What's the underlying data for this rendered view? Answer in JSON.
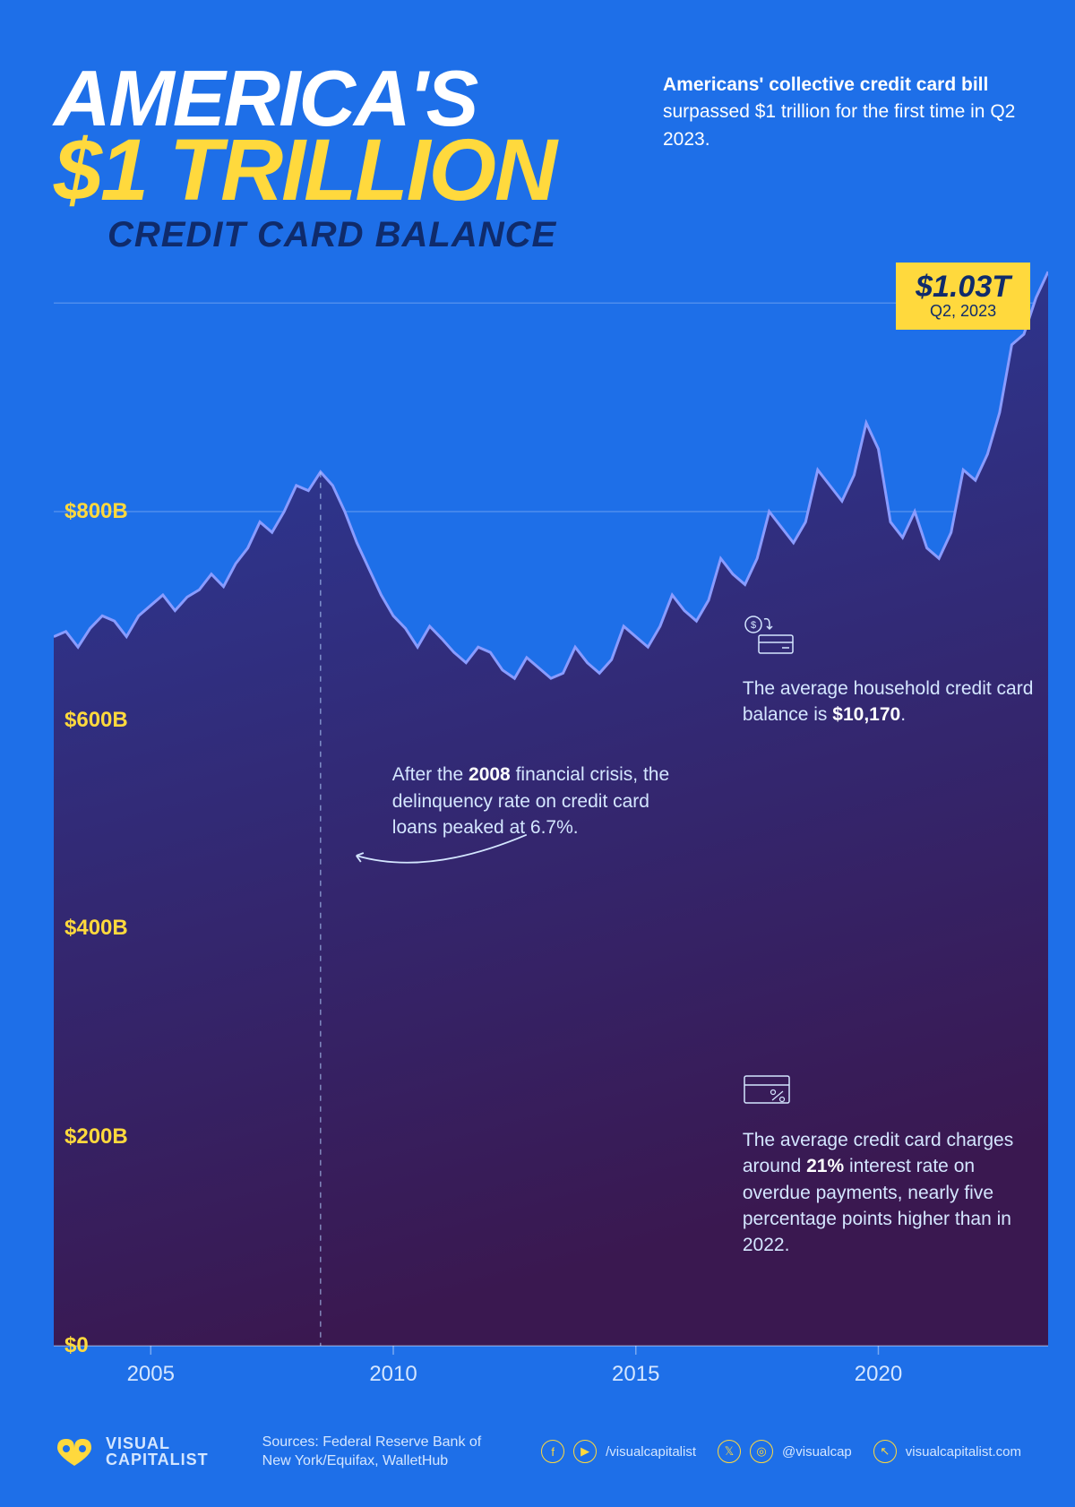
{
  "title": {
    "line1": "AMERICA'S",
    "line2": "$1 TRILLION",
    "line3": "CREDIT CARD BALANCE"
  },
  "subtitle": {
    "bold": "Americans' collective credit card bill",
    "rest": " surpassed $1 trillion for the first time in Q2 2023."
  },
  "colors": {
    "bg": "#1e6fe8",
    "accent": "#ffd93d",
    "dark": "#0f2b6b",
    "area_top": "#2a3d9e",
    "area_bottom": "#3a1850",
    "line_stroke": "#8a9cff",
    "text_light": "#d4e6ff",
    "white": "#ffffff"
  },
  "chart": {
    "type": "area",
    "x_start_year": 2003,
    "x_end_year": 2023.5,
    "ylim": [
      0,
      1050
    ],
    "ytick_values": [
      0,
      200,
      400,
      600,
      800
    ],
    "ytick_labels": [
      "$0",
      "$200B",
      "$400B",
      "$600B",
      "$800B"
    ],
    "xtick_values": [
      2005,
      2010,
      2015,
      2020
    ],
    "xtick_labels": [
      "2005",
      "2010",
      "2015",
      "2020"
    ],
    "vertical_marker_year": 2008.5,
    "data": [
      [
        2003.0,
        680
      ],
      [
        2003.25,
        685
      ],
      [
        2003.5,
        670
      ],
      [
        2003.75,
        688
      ],
      [
        2004.0,
        700
      ],
      [
        2004.25,
        695
      ],
      [
        2004.5,
        680
      ],
      [
        2004.75,
        700
      ],
      [
        2005.0,
        710
      ],
      [
        2005.25,
        720
      ],
      [
        2005.5,
        705
      ],
      [
        2005.75,
        718
      ],
      [
        2006.0,
        725
      ],
      [
        2006.25,
        740
      ],
      [
        2006.5,
        728
      ],
      [
        2006.75,
        750
      ],
      [
        2007.0,
        765
      ],
      [
        2007.25,
        790
      ],
      [
        2007.5,
        780
      ],
      [
        2007.75,
        800
      ],
      [
        2008.0,
        825
      ],
      [
        2008.25,
        820
      ],
      [
        2008.5,
        838
      ],
      [
        2008.75,
        825
      ],
      [
        2009.0,
        800
      ],
      [
        2009.25,
        770
      ],
      [
        2009.5,
        745
      ],
      [
        2009.75,
        720
      ],
      [
        2010.0,
        700
      ],
      [
        2010.25,
        688
      ],
      [
        2010.5,
        670
      ],
      [
        2010.75,
        690
      ],
      [
        2011.0,
        678
      ],
      [
        2011.25,
        665
      ],
      [
        2011.5,
        655
      ],
      [
        2011.75,
        670
      ],
      [
        2012.0,
        665
      ],
      [
        2012.25,
        648
      ],
      [
        2012.5,
        640
      ],
      [
        2012.75,
        660
      ],
      [
        2013.0,
        650
      ],
      [
        2013.25,
        640
      ],
      [
        2013.5,
        645
      ],
      [
        2013.75,
        670
      ],
      [
        2014.0,
        655
      ],
      [
        2014.25,
        645
      ],
      [
        2014.5,
        658
      ],
      [
        2014.75,
        690
      ],
      [
        2015.0,
        680
      ],
      [
        2015.25,
        670
      ],
      [
        2015.5,
        690
      ],
      [
        2015.75,
        720
      ],
      [
        2016.0,
        705
      ],
      [
        2016.25,
        695
      ],
      [
        2016.5,
        715
      ],
      [
        2016.75,
        755
      ],
      [
        2017.0,
        740
      ],
      [
        2017.25,
        730
      ],
      [
        2017.5,
        755
      ],
      [
        2017.75,
        800
      ],
      [
        2018.0,
        785
      ],
      [
        2018.25,
        770
      ],
      [
        2018.5,
        790
      ],
      [
        2018.75,
        840
      ],
      [
        2019.0,
        825
      ],
      [
        2019.25,
        810
      ],
      [
        2019.5,
        835
      ],
      [
        2019.75,
        885
      ],
      [
        2020.0,
        860
      ],
      [
        2020.25,
        790
      ],
      [
        2020.5,
        775
      ],
      [
        2020.75,
        800
      ],
      [
        2021.0,
        765
      ],
      [
        2021.25,
        755
      ],
      [
        2021.5,
        780
      ],
      [
        2021.75,
        840
      ],
      [
        2022.0,
        830
      ],
      [
        2022.25,
        855
      ],
      [
        2022.5,
        895
      ],
      [
        2022.75,
        960
      ],
      [
        2023.0,
        970
      ],
      [
        2023.25,
        1005
      ],
      [
        2023.5,
        1030
      ]
    ],
    "callout": {
      "value": "$1.03T",
      "date": "Q2, 2023"
    }
  },
  "annotations": {
    "crisis": {
      "text_pre": "After the ",
      "bold1": "2008",
      "text_mid": " financial crisis, the delinquency rate on credit card loans peaked at 6.7%."
    },
    "household": {
      "text": "The average household credit card balance is ",
      "bold": "$10,170",
      "suffix": "."
    },
    "interest": {
      "text_pre": "The average credit card charges around ",
      "bold": "21%",
      "text_post": " interest rate on overdue payments, nearly five percentage points higher than in 2022."
    }
  },
  "footer": {
    "brand_line1": "VISUAL",
    "brand_line2": "CAPITALIST",
    "sources": "Sources: Federal Reserve Bank of New York/Equifax, WalletHub",
    "social1": "/visualcapitalist",
    "social2": "@visualcap",
    "social3": "visualcapitalist.com"
  }
}
